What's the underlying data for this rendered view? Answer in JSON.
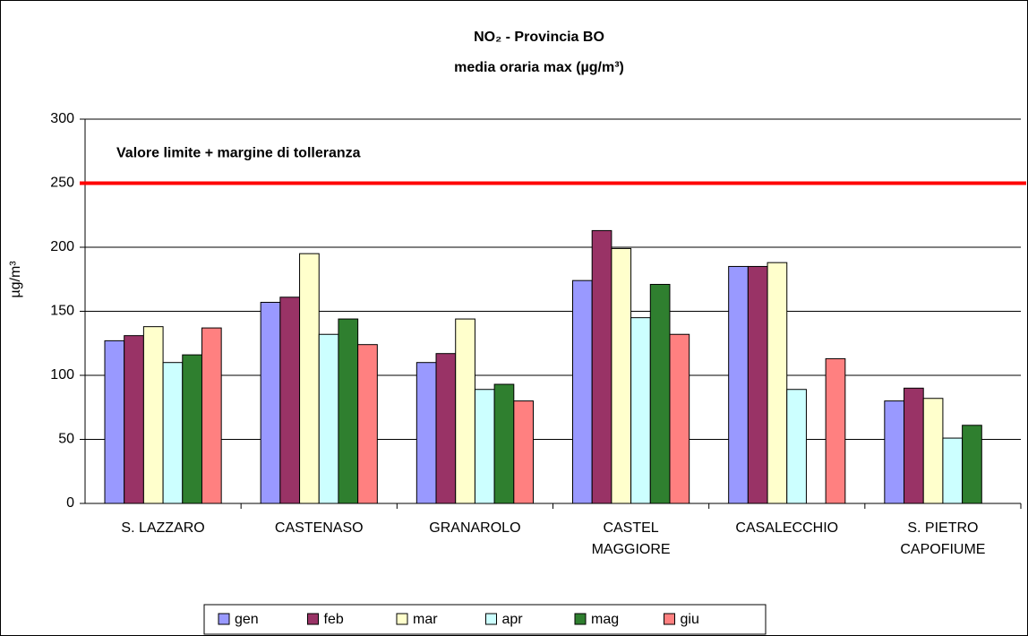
{
  "chart_data": {
    "type": "bar",
    "title": "NO₂ - Provincia BO",
    "subtitle": "media oraria max (µg/m³)",
    "y_label": "µg/m³",
    "categories": [
      [
        "S. LAZZARO"
      ],
      [
        "CASTENASO"
      ],
      [
        "GRANAROLO"
      ],
      [
        "CASTEL",
        "MAGGIORE"
      ],
      [
        "CASALECCHIO"
      ],
      [
        "S. PIETRO",
        "CAPOFIUME"
      ]
    ],
    "series": [
      {
        "name": "gen",
        "color": "#9999ff",
        "values": [
          127,
          157,
          110,
          174,
          185,
          80
        ]
      },
      {
        "name": "feb",
        "color": "#993366",
        "values": [
          131,
          161,
          117,
          213,
          185,
          90
        ]
      },
      {
        "name": "mar",
        "color": "#ffffcc",
        "values": [
          138,
          195,
          144,
          199,
          188,
          82
        ]
      },
      {
        "name": "apr",
        "color": "#ccffff",
        "values": [
          110,
          132,
          89,
          145,
          89,
          51
        ]
      },
      {
        "name": "mag",
        "color": "#2f7f2f",
        "values": [
          116,
          144,
          93,
          171,
          null,
          61
        ]
      },
      {
        "name": "giu",
        "color": "#ff8080",
        "values": [
          137,
          124,
          80,
          132,
          113,
          null
        ]
      }
    ],
    "reference_line": {
      "value": 250,
      "label": "Valore limite + margine di tolleranza",
      "color": "#ff0000"
    },
    "ylim": [
      0,
      300
    ],
    "yticks": [
      0,
      50,
      100,
      150,
      200,
      250,
      300
    ],
    "grid": true,
    "legend": "bottom"
  }
}
